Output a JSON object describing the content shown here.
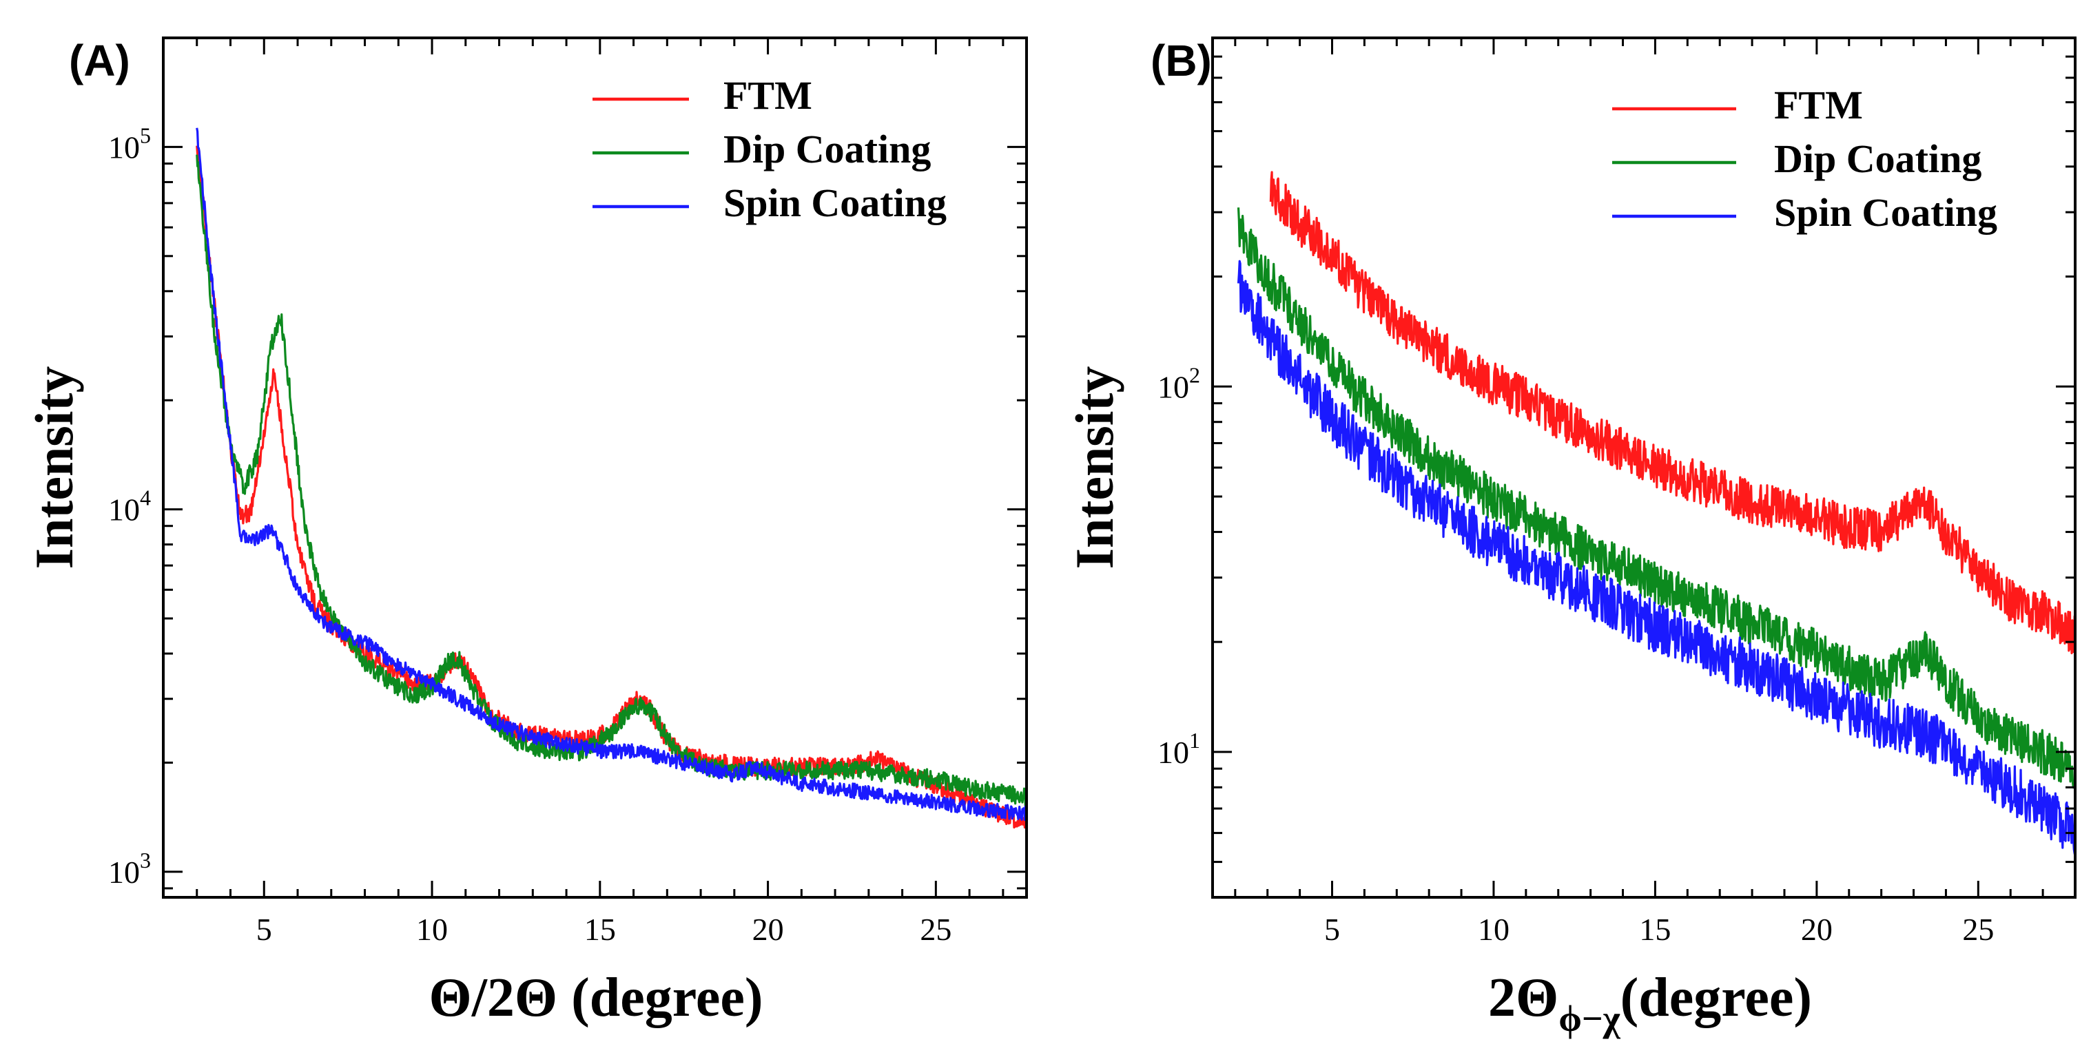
{
  "chart_data": [
    {
      "type": "line",
      "panel_label": "(A)",
      "xlabel": "Θ/2Θ (degree)",
      "ylabel": "Intensity",
      "xlim": [
        2.0,
        27.7
      ],
      "ylim": [
        850,
        200000
      ],
      "yscale": "log",
      "xticks": [
        5,
        10,
        15,
        20,
        25
      ],
      "yticks": [
        {
          "base": "10",
          "exp": "3",
          "value": 1000
        },
        {
          "base": "10",
          "exp": "4",
          "value": 10000
        },
        {
          "base": "10",
          "exp": "5",
          "value": 100000
        }
      ],
      "grid": false,
      "legend": "top-right",
      "series": [
        {
          "name": "FTM",
          "color": "#ff1a1a",
          "noise": 0.025,
          "x": [
            3.0,
            3.5,
            4.0,
            4.3,
            4.6,
            5.0,
            5.3,
            5.6,
            6.0,
            6.5,
            7.0,
            8.0,
            9.0,
            9.5,
            10.0,
            10.4,
            10.8,
            11.2,
            11.8,
            12.5,
            13.5,
            14.5,
            15.3,
            15.8,
            16.1,
            16.5,
            17.0,
            17.5,
            18.5,
            19.5,
            20.5,
            21.5,
            22.5,
            23.2,
            23.8,
            24.5,
            25.5,
            26.5,
            27.7
          ],
          "y": [
            100000,
            38000,
            15000,
            9500,
            9800,
            16000,
            24000,
            15000,
            8000,
            5500,
            4800,
            4000,
            3500,
            3300,
            3300,
            3600,
            3900,
            3400,
            2700,
            2450,
            2350,
            2300,
            2450,
            2800,
            3000,
            2800,
            2300,
            2100,
            2000,
            1950,
            1950,
            1950,
            1950,
            2050,
            1950,
            1800,
            1650,
            1500,
            1350
          ]
        },
        {
          "name": "Dip Coating",
          "color": "#0c8a1e",
          "noise": 0.025,
          "x": [
            3.0,
            3.5,
            4.0,
            4.4,
            4.8,
            5.2,
            5.5,
            5.8,
            6.2,
            6.7,
            7.2,
            8.0,
            8.8,
            9.5,
            10.0,
            10.5,
            10.8,
            11.2,
            11.8,
            12.5,
            13.5,
            14.5,
            15.3,
            15.8,
            16.2,
            16.6,
            17.2,
            18.0,
            19.0,
            20.0,
            21.0,
            22.0,
            23.0,
            24.0,
            25.0,
            26.0,
            27.7
          ],
          "y": [
            95000,
            32000,
            15000,
            11500,
            14000,
            28000,
            34000,
            20000,
            9000,
            5800,
            4800,
            3800,
            3300,
            3050,
            3250,
            3800,
            3850,
            3200,
            2600,
            2300,
            2150,
            2150,
            2400,
            2750,
            2900,
            2700,
            2200,
            1950,
            1900,
            1900,
            1900,
            1900,
            1900,
            1850,
            1800,
            1700,
            1600
          ]
        },
        {
          "name": "Spin Coating",
          "color": "#1a1aff",
          "noise": 0.02,
          "x": [
            3.0,
            3.5,
            4.0,
            4.3,
            4.7,
            5.2,
            5.6,
            6.0,
            6.5,
            7.0,
            8.0,
            9.0,
            10.0,
            11.0,
            12.0,
            13.0,
            14.0,
            15.0,
            16.0,
            17.0,
            18.0,
            19.0,
            19.6,
            20.2,
            21.0,
            22.0,
            23.0,
            24.0,
            25.0,
            26.0,
            27.7
          ],
          "y": [
            110000,
            38000,
            15000,
            8500,
            8200,
            8800,
            7500,
            6000,
            5200,
            4700,
            4300,
            3700,
            3300,
            2900,
            2550,
            2350,
            2250,
            2150,
            2150,
            2050,
            1950,
            1850,
            1950,
            1850,
            1750,
            1700,
            1650,
            1600,
            1550,
            1500,
            1450
          ]
        }
      ]
    },
    {
      "type": "line",
      "panel_label": "(B)",
      "xlabel": "2Θ",
      "xlabel_sub": "ϕ−χ",
      "xlabel_tail": "(degree)",
      "ylabel": "Intensity",
      "xlim": [
        1.3,
        28.0
      ],
      "ylim": [
        4,
        900
      ],
      "yscale": "log",
      "xticks": [
        5,
        10,
        15,
        20,
        25
      ],
      "yticks": [
        {
          "base": "10",
          "exp": "1",
          "value": 10
        },
        {
          "base": "10",
          "exp": "2",
          "value": 100
        }
      ],
      "grid": false,
      "legend": "top-right",
      "series": [
        {
          "name": "FTM",
          "color": "#ff1a1a",
          "noise": 0.06,
          "x": [
            3.1,
            4.0,
            5.0,
            6.0,
            7.0,
            8.0,
            9.0,
            10.0,
            11.0,
            12.0,
            13.0,
            14.0,
            15.0,
            16.0,
            17.0,
            18.0,
            19.0,
            20.0,
            21.0,
            22.0,
            22.8,
            23.3,
            24.0,
            25.0,
            26.0,
            27.0,
            28.0
          ],
          "y": [
            350,
            280,
            230,
            180,
            150,
            130,
            115,
            102,
            92,
            82,
            74,
            67,
            61,
            56,
            52,
            48,
            46,
            44,
            41,
            40,
            45,
            48,
            40,
            31,
            26,
            24,
            21
          ]
        },
        {
          "name": "Dip Coating",
          "color": "#0c8a1e",
          "noise": 0.06,
          "x": [
            2.1,
            3.0,
            4.0,
            5.0,
            6.0,
            7.0,
            8.0,
            9.0,
            10.0,
            11.0,
            12.0,
            13.0,
            14.0,
            15.0,
            16.0,
            17.0,
            18.0,
            19.0,
            20.0,
            21.0,
            22.0,
            23.0,
            23.4,
            24.0,
            25.0,
            26.0,
            27.0,
            28.0
          ],
          "y": [
            270,
            200,
            150,
            115,
            92,
            76,
            64,
            56,
            49,
            44,
            39,
            35,
            32,
            29,
            26.5,
            24.5,
            22.5,
            20.5,
            19,
            17,
            15.5,
            18,
            19,
            15.5,
            12.5,
            11,
            10,
            9
          ]
        },
        {
          "name": "Spin Coating",
          "color": "#1a1aff",
          "noise": 0.07,
          "x": [
            2.1,
            3.0,
            4.0,
            5.0,
            6.0,
            7.0,
            8.0,
            9.0,
            10.0,
            11.0,
            12.0,
            13.0,
            14.0,
            15.0,
            16.0,
            17.0,
            18.0,
            19.0,
            20.0,
            21.0,
            22.0,
            23.0,
            24.0,
            25.0,
            26.0,
            27.0,
            28.0
          ],
          "y": [
            190,
            140,
            105,
            82,
            67,
            56,
            48,
            42,
            37,
            33,
            30,
            27,
            24.5,
            22,
            20,
            18.5,
            17,
            15.5,
            14,
            13,
            12,
            11.5,
            10.5,
            9,
            8,
            7,
            6
          ]
        }
      ]
    }
  ]
}
